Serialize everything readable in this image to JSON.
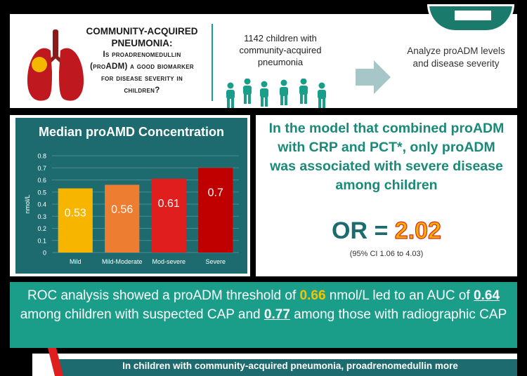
{
  "header": {
    "question_title": "COMMUNITY-ACQUIRED PNEUMONIA:",
    "question_body": "Is proadrenomedullin (proADM) a good biomarker for disease severity in children?",
    "cohort_text": "1142 children with community-acquired pneumonia",
    "analyze_text": "Analyze proADM levels and disease severity"
  },
  "colors": {
    "teal_dark": "#1d6b6e",
    "teal": "#1a9e8a",
    "bar_mild": "#f7b500",
    "bar_mild_moderate": "#ed7d31",
    "bar_mod_severe": "#e01e1e",
    "bar_severe": "#c00000",
    "highlight": "#f6c300"
  },
  "icons": {
    "lungs": "lungs-icon",
    "people": "people-group-icon",
    "arrow": "arrow-right-icon",
    "logo": "journal-logo-icon",
    "alert": "red-alert-mark-icon"
  },
  "chart_data": {
    "type": "bar",
    "title": "Median proAMD Concentration",
    "ylabel": "nmol/L",
    "xlabel": "",
    "categories": [
      "Mild",
      "Mild-Moderate",
      "Mod-severe",
      "Severe"
    ],
    "values": [
      0.53,
      0.56,
      0.61,
      0.7
    ],
    "value_labels": [
      "0.53",
      "0.56",
      "0.61",
      "0.7"
    ],
    "ylim": [
      0,
      0.8
    ],
    "yticks": [
      "0",
      "0.1",
      "0.2",
      "0.3",
      "0.4",
      "0.5",
      "0.6",
      "0.7",
      "0.8"
    ],
    "grid": true,
    "legend": "none"
  },
  "model": {
    "statement": "In the model that combined proADM with CRP and PCT*, only proADM was associated with severe disease among children",
    "or_label": "OR = ",
    "or_value": "2.02",
    "ci": "(95% CI 1.06 to 4.03)"
  },
  "roc": {
    "part1": "ROC analysis showed a proADM threshold of ",
    "threshold": "0.66",
    "part2": " nmol/L led to an AUC of ",
    "auc1": "0.64",
    "part3": " among children with suspected CAP and ",
    "auc2": "0.77",
    "part4": " among those with radiographic CAP"
  },
  "conclusion": {
    "text": "In children with community-acquired pneumonia, proadrenomedullin more"
  }
}
